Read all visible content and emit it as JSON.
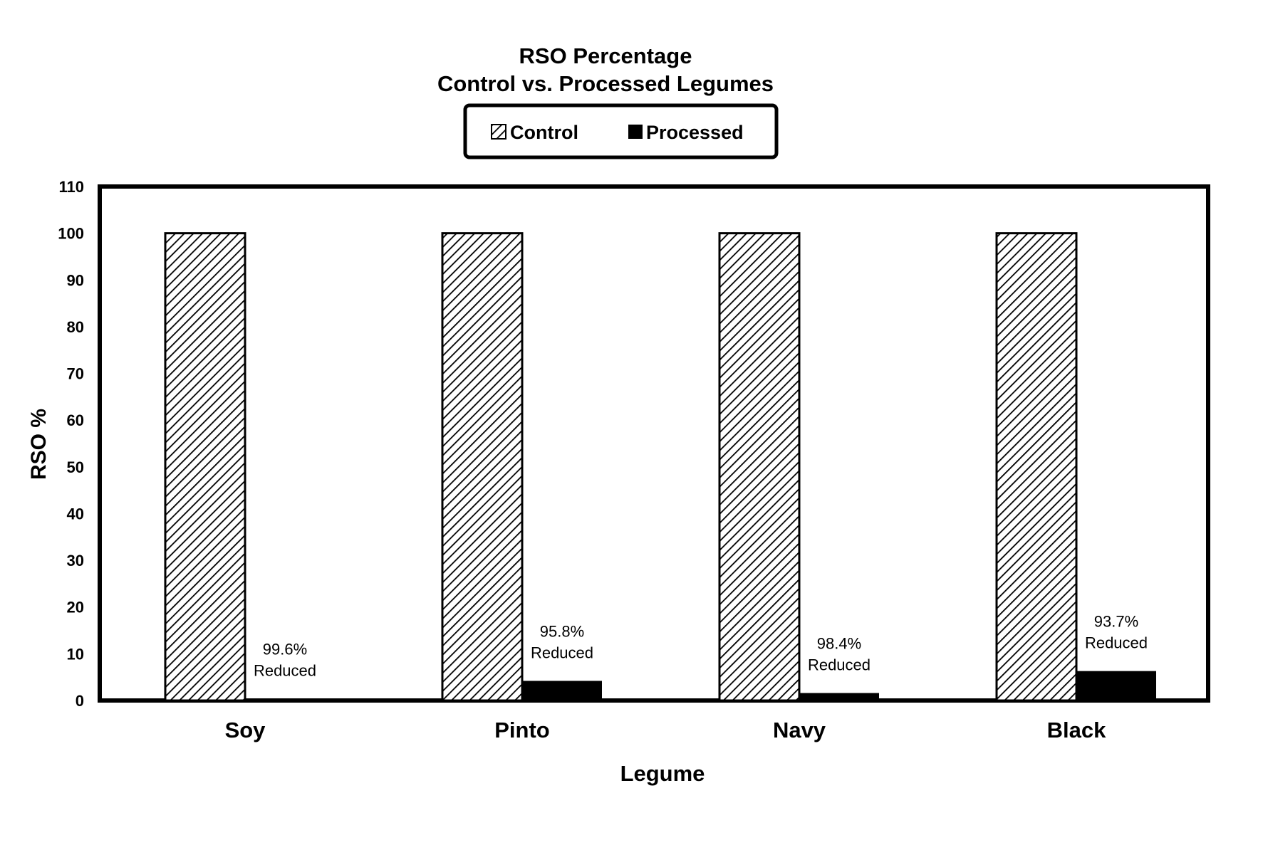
{
  "chart_data": {
    "type": "bar",
    "title": "RSO Percentage",
    "subtitle": "Control vs. Processed Legumes",
    "xlabel": "Legume",
    "ylabel": "RSO %",
    "ylim": [
      0,
      110
    ],
    "yticks": [
      0,
      10,
      20,
      30,
      40,
      50,
      60,
      70,
      80,
      90,
      100,
      110
    ],
    "grid": false,
    "legend_position": "top-center",
    "categories": [
      "Soy",
      "Pinto",
      "Navy",
      "Black"
    ],
    "series": [
      {
        "name": "Control",
        "values": [
          100,
          100,
          100,
          100
        ],
        "pattern": "diagonal-hatch",
        "color": "#000000"
      },
      {
        "name": "Processed",
        "values": [
          0.4,
          4.2,
          1.6,
          6.3
        ],
        "pattern": "solid",
        "color": "#000000"
      }
    ],
    "annotations": [
      {
        "category": "Soy",
        "line1": "99.6%",
        "line2": "Reduced"
      },
      {
        "category": "Pinto",
        "line1": "95.8%",
        "line2": "Reduced"
      },
      {
        "category": "Navy",
        "line1": "98.4%",
        "line2": "Reduced"
      },
      {
        "category": "Black",
        "line1": "93.7%",
        "line2": "Reduced"
      }
    ]
  }
}
